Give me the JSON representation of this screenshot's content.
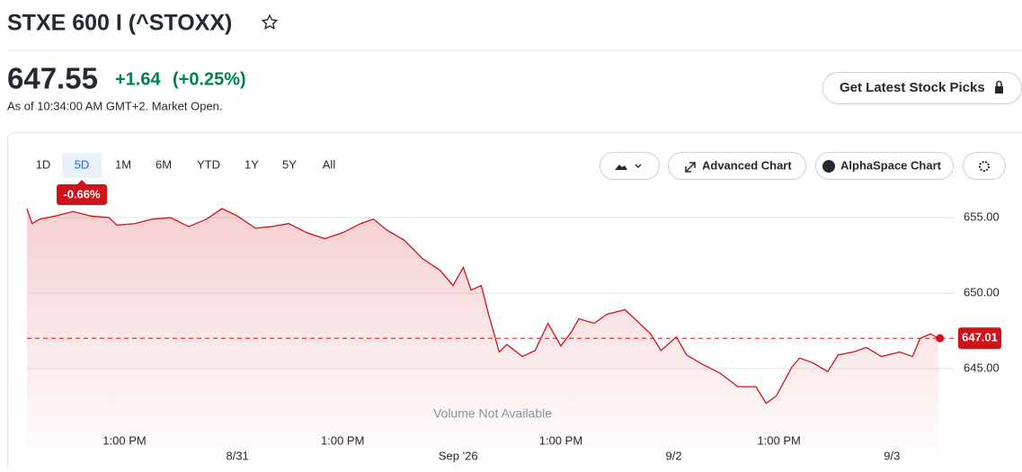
{
  "header": {
    "title": "STXE 600 I (^STOXX)",
    "price": "647.55",
    "change": "+1.64",
    "change_pct": "(+0.25%)",
    "as_of": "As of 10:34:00 AM GMT+2. Market Open.",
    "cta": "Get Latest Stock Picks"
  },
  "toolbar": {
    "ranges": [
      "1D",
      "5D",
      "1M",
      "6M",
      "YTD",
      "1Y",
      "5Y",
      "All"
    ],
    "active": 1,
    "period_change": "-0.66%",
    "advanced": "Advanced Chart",
    "alphaspace": "AlphaSpace Chart"
  },
  "chart_data": {
    "type": "area",
    "color": "#d0121b",
    "note": "Volume Not Available",
    "x": [
      0,
      0.2,
      0.5,
      1.1,
      1.8,
      2.5,
      3.2,
      3.5,
      4.2,
      4.9,
      5.6,
      6.3,
      7.0,
      7.6,
      8.2,
      8.9,
      9.5,
      10.2,
      10.9,
      11.6,
      12.3,
      13.0,
      13.5,
      14.0,
      14.7,
      15.4,
      16.1,
      16.6,
      17.0,
      17.3,
      17.7,
      18.0,
      18.4,
      18.7,
      19.3,
      19.8,
      20.3,
      20.8,
      21.2,
      21.5,
      22.1,
      22.6,
      23.3,
      23.8,
      24.3,
      24.7,
      25.3,
      25.7,
      26.3,
      27.0,
      27.7,
      28.4,
      28.8,
      29.2,
      29.8,
      30.1,
      30.6,
      31.2,
      31.6,
      32.2,
      32.7,
      33.3,
      34.0,
      34.5,
      34.8,
      35.2,
      35.5
    ],
    "values": [
      655.6,
      654.6,
      654.9,
      655.1,
      655.4,
      655.1,
      655.0,
      654.5,
      654.6,
      654.9,
      655.0,
      654.4,
      654.9,
      655.6,
      655.1,
      654.3,
      654.4,
      654.6,
      654.0,
      653.6,
      654.0,
      654.6,
      654.9,
      654.2,
      653.5,
      652.3,
      651.5,
      650.5,
      651.7,
      650.2,
      650.5,
      648.5,
      646.1,
      646.6,
      645.8,
      646.2,
      648.0,
      646.5,
      647.4,
      648.3,
      648.0,
      648.6,
      648.9,
      648.1,
      647.3,
      646.2,
      647.1,
      645.9,
      645.3,
      644.7,
      643.8,
      643.8,
      642.7,
      643.2,
      645.1,
      645.7,
      645.4,
      644.8,
      645.9,
      646.1,
      646.4,
      645.8,
      646.1,
      645.8,
      647.0,
      647.3,
      647.01
    ],
    "xlim": [
      0,
      36
    ],
    "ylim": [
      642,
      656
    ],
    "yticks": [
      {
        "value": 645,
        "label": "645.00"
      },
      {
        "value": 650,
        "label": "650.00"
      },
      {
        "value": 655,
        "label": "655.00"
      }
    ],
    "xticks": [
      {
        "value": 3.8,
        "label": "1:00 PM"
      },
      {
        "value": 12.3,
        "label": "1:00 PM"
      },
      {
        "value": 20.8,
        "label": "1:00 PM"
      },
      {
        "value": 29.3,
        "label": "1:00 PM"
      }
    ],
    "date_ticks": [
      {
        "value": 8.2,
        "label": "8/31"
      },
      {
        "value": 16.8,
        "label": "Sep '26"
      },
      {
        "value": 25.2,
        "label": "9/2"
      },
      {
        "value": 33.7,
        "label": "9/3"
      }
    ],
    "reference_line": {
      "value": 647.01,
      "label": "647.01"
    },
    "grid": true
  }
}
